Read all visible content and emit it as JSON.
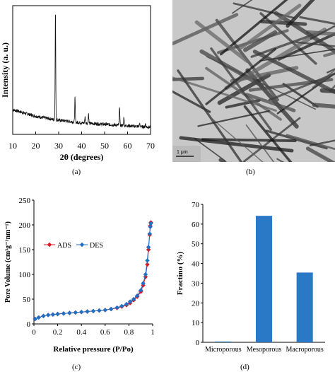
{
  "panels": {
    "a": {
      "tag": "(a)"
    },
    "b": {
      "tag": "(b)",
      "scale_label": "1 μm"
    },
    "c": {
      "tag": "(c)"
    },
    "d": {
      "tag": "(d)"
    }
  },
  "colors": {
    "ads": "#e0141e",
    "des": "#1f6fc4",
    "bar": "#2a79c7",
    "xrd": "#111111",
    "tem_bg": "#c8c8c8"
  },
  "chart_data": [
    {
      "id": "xrd",
      "type": "line",
      "xlabel": "2θ (degrees)",
      "ylabel": "Intensity (a. u.)",
      "xlim": [
        10,
        70
      ],
      "xticks": [
        10,
        20,
        30,
        40,
        50,
        60,
        70
      ],
      "yticks_shown": false,
      "grid": false,
      "baseline": [
        [
          10,
          0.18
        ],
        [
          20,
          0.12
        ],
        [
          28,
          0.09
        ],
        [
          40,
          0.06
        ],
        [
          55,
          0.04
        ],
        [
          70,
          0.02
        ]
      ],
      "peaks": [
        {
          "x": 28.6,
          "y": 1.0
        },
        {
          "x": 37.1,
          "y": 0.22
        },
        {
          "x": 41.5,
          "y": 0.06
        },
        {
          "x": 43.0,
          "y": 0.09
        },
        {
          "x": 56.5,
          "y": 0.18
        },
        {
          "x": 58.4,
          "y": 0.08
        },
        {
          "x": 65.2,
          "y": 0.03
        },
        {
          "x": 67.8,
          "y": 0.03
        }
      ]
    },
    {
      "id": "isotherm",
      "type": "line",
      "xlabel": "Relative pressure (P/Po)",
      "ylabel": "Pore Volume (cm³g⁻¹nm⁻¹)",
      "xlim": [
        0,
        1
      ],
      "ylim": [
        0,
        250
      ],
      "xticks": [
        0,
        0.2,
        0.4,
        0.6,
        0.8,
        1
      ],
      "yticks": [
        0,
        50,
        100,
        150,
        200,
        250
      ],
      "legend_position": "center-left",
      "series": [
        {
          "name": "ADS",
          "x": [
            0.01,
            0.04,
            0.08,
            0.12,
            0.16,
            0.2,
            0.25,
            0.3,
            0.35,
            0.4,
            0.45,
            0.5,
            0.55,
            0.6,
            0.65,
            0.7,
            0.74,
            0.78,
            0.81,
            0.84,
            0.87,
            0.9,
            0.92,
            0.94,
            0.955,
            0.965,
            0.975,
            0.98,
            0.985
          ],
          "y": [
            10,
            13,
            16,
            18,
            19,
            20,
            21,
            22,
            23,
            24,
            25,
            26,
            27,
            28,
            30,
            32,
            35,
            38,
            42,
            48,
            55,
            65,
            78,
            95,
            120,
            150,
            180,
            198,
            205
          ]
        },
        {
          "name": "DES",
          "x": [
            0.985,
            0.98,
            0.975,
            0.965,
            0.955,
            0.94,
            0.92,
            0.9,
            0.87,
            0.84,
            0.81,
            0.78,
            0.74,
            0.7,
            0.65,
            0.6,
            0.55,
            0.5,
            0.45,
            0.4,
            0.35,
            0.3,
            0.25,
            0.2,
            0.16,
            0.12,
            0.08,
            0.04,
            0.01
          ],
          "y": [
            203,
            196,
            182,
            155,
            128,
            100,
            82,
            68,
            57,
            50,
            45,
            40,
            36,
            33,
            30,
            28,
            27,
            26,
            25,
            24,
            23,
            22,
            21,
            20,
            19,
            18,
            16,
            13,
            10
          ]
        }
      ]
    },
    {
      "id": "porosity",
      "type": "bar",
      "ylabel": "Fractino (%)",
      "xlabel": "",
      "ylim": [
        0,
        70
      ],
      "yticks": [
        0,
        10,
        20,
        30,
        40,
        50,
        60,
        70
      ],
      "grid": false,
      "categories": [
        "Microporous",
        "Mesoporous",
        "Macroporous"
      ],
      "values": [
        0.4,
        64.2,
        35.4
      ]
    }
  ]
}
